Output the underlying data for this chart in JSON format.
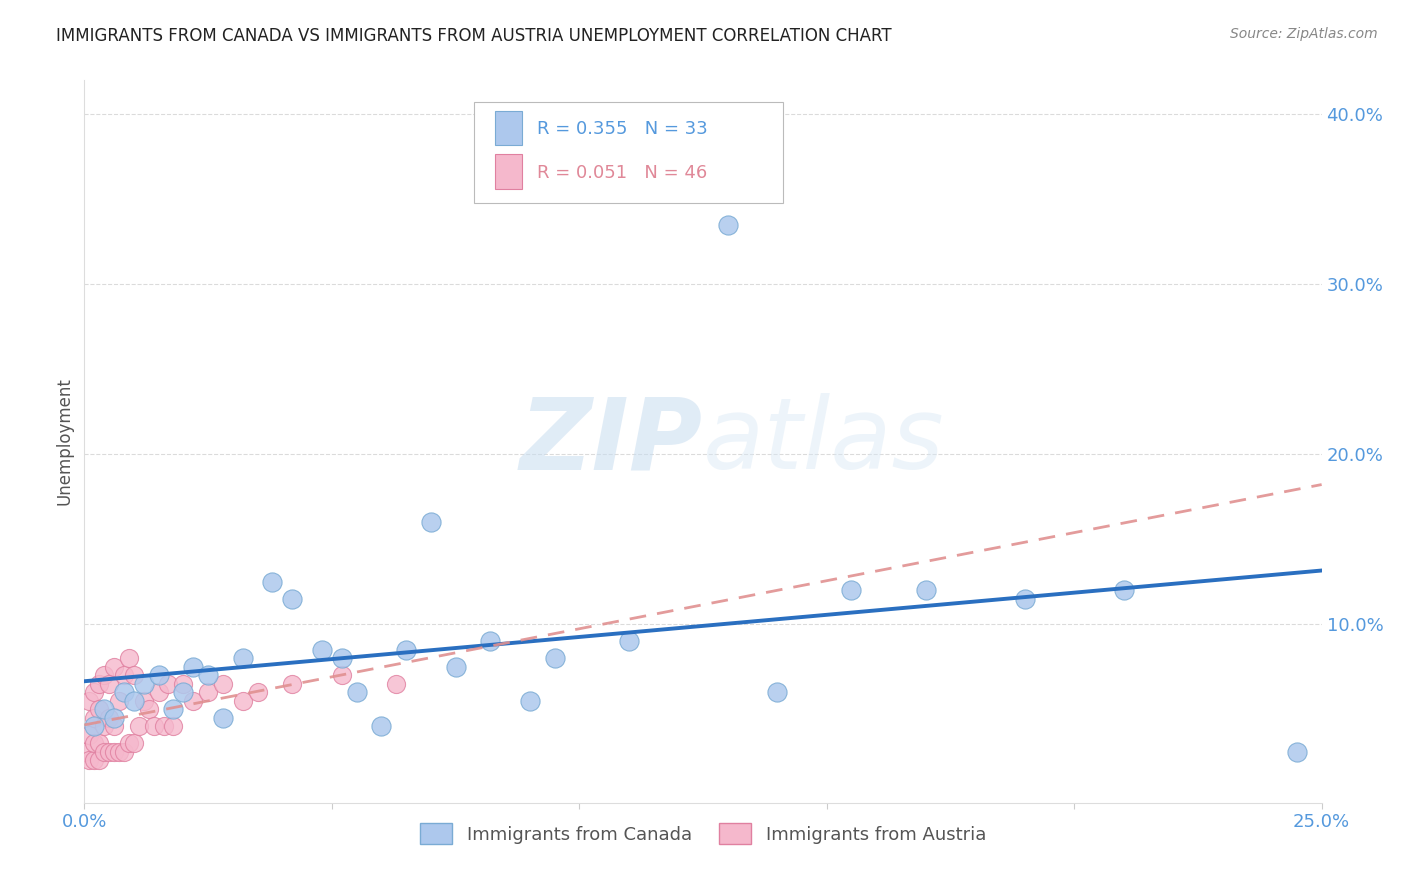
{
  "title": "IMMIGRANTS FROM CANADA VS IMMIGRANTS FROM AUSTRIA UNEMPLOYMENT CORRELATION CHART",
  "source": "Source: ZipAtlas.com",
  "ylabel": "Unemployment",
  "xlim": [
    0.0,
    0.25
  ],
  "ylim": [
    -0.005,
    0.42
  ],
  "xticks": [
    0.0,
    0.05,
    0.1,
    0.15,
    0.2,
    0.25
  ],
  "yticks": [
    0.1,
    0.2,
    0.3,
    0.4
  ],
  "ytick_labels": [
    "10.0%",
    "20.0%",
    "30.0%",
    "40.0%"
  ],
  "xtick_labels": [
    "0.0%",
    "",
    "",
    "",
    "",
    "25.0%"
  ],
  "background_color": "#ffffff",
  "watermark_zip": "ZIP",
  "watermark_atlas": "atlas",
  "canada_color": "#adc8ed",
  "canada_edge_color": "#7aabd4",
  "austria_color": "#f5b8cc",
  "austria_edge_color": "#e080a0",
  "canada_line_color": "#2a6fc0",
  "austria_line_color": "#e09090",
  "tick_color": "#5599dd",
  "canada_x": [
    0.002,
    0.004,
    0.006,
    0.008,
    0.01,
    0.012,
    0.015,
    0.018,
    0.02,
    0.022,
    0.025,
    0.028,
    0.032,
    0.038,
    0.042,
    0.048,
    0.052,
    0.055,
    0.06,
    0.065,
    0.07,
    0.075,
    0.082,
    0.09,
    0.095,
    0.11,
    0.13,
    0.14,
    0.155,
    0.17,
    0.19,
    0.21,
    0.245
  ],
  "canada_y": [
    0.04,
    0.05,
    0.045,
    0.06,
    0.055,
    0.065,
    0.07,
    0.05,
    0.06,
    0.075,
    0.07,
    0.045,
    0.08,
    0.125,
    0.115,
    0.085,
    0.08,
    0.06,
    0.04,
    0.085,
    0.16,
    0.075,
    0.09,
    0.055,
    0.08,
    0.09,
    0.335,
    0.06,
    0.12,
    0.12,
    0.115,
    0.12,
    0.025
  ],
  "austria_x": [
    0.0,
    0.001,
    0.001,
    0.001,
    0.002,
    0.002,
    0.002,
    0.002,
    0.003,
    0.003,
    0.003,
    0.003,
    0.004,
    0.004,
    0.004,
    0.005,
    0.005,
    0.005,
    0.006,
    0.006,
    0.006,
    0.007,
    0.007,
    0.008,
    0.008,
    0.009,
    0.009,
    0.01,
    0.01,
    0.011,
    0.012,
    0.013,
    0.014,
    0.015,
    0.016,
    0.017,
    0.018,
    0.02,
    0.022,
    0.025,
    0.028,
    0.032,
    0.035,
    0.042,
    0.052,
    0.063
  ],
  "austria_y": [
    0.025,
    0.02,
    0.035,
    0.055,
    0.02,
    0.03,
    0.045,
    0.06,
    0.02,
    0.03,
    0.05,
    0.065,
    0.025,
    0.04,
    0.07,
    0.025,
    0.045,
    0.065,
    0.025,
    0.04,
    0.075,
    0.025,
    0.055,
    0.025,
    0.07,
    0.03,
    0.08,
    0.03,
    0.07,
    0.04,
    0.055,
    0.05,
    0.04,
    0.06,
    0.04,
    0.065,
    0.04,
    0.065,
    0.055,
    0.06,
    0.065,
    0.055,
    0.06,
    0.065,
    0.07,
    0.065
  ]
}
